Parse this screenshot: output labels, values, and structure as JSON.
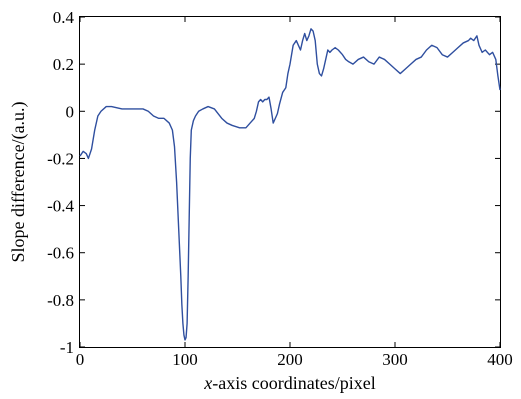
{
  "chart_data": {
    "type": "line",
    "title": "",
    "xlabel_italic": "x",
    "xlabel_rest": "-axis coordinates/pixel",
    "ylabel": "Slope difference/(a.u.)",
    "xlim": [
      0,
      400
    ],
    "ylim": [
      -1,
      0.4
    ],
    "xticks": [
      0,
      100,
      200,
      300,
      400
    ],
    "yticks": [
      -1,
      -0.8,
      -0.6,
      -0.4,
      -0.2,
      0,
      0.2,
      0.4
    ],
    "xtick_labels": [
      "0",
      "100",
      "200",
      "300",
      "400"
    ],
    "ytick_labels": [
      "-1",
      "-0.8",
      "-0.6",
      "-0.4",
      "-0.2",
      "0",
      "0.2",
      "0.4"
    ],
    "grid": false,
    "line_color": "#2f4f9f",
    "series": [
      {
        "x": [
          0,
          3,
          6,
          8,
          11,
          14,
          17,
          20,
          25,
          30,
          40,
          50,
          60,
          65,
          70,
          75,
          80,
          85,
          88,
          90,
          92,
          94,
          96,
          97,
          98,
          99,
          100,
          101,
          102,
          103,
          104,
          105,
          106,
          108,
          110,
          113,
          117,
          122,
          128,
          135,
          140,
          145,
          152,
          158,
          162,
          166,
          168,
          170,
          172,
          174,
          176,
          178,
          180,
          182,
          183,
          184,
          185,
          186,
          188,
          190,
          193,
          196,
          198,
          200,
          203,
          206,
          208,
          210,
          212,
          214,
          216,
          218,
          220,
          222,
          224,
          226,
          228,
          230,
          232,
          234,
          236,
          238,
          240,
          243,
          246,
          250,
          253,
          256,
          260,
          265,
          270,
          275,
          280,
          285,
          290,
          295,
          300,
          305,
          310,
          315,
          320,
          325,
          330,
          335,
          340,
          345,
          350,
          355,
          360,
          365,
          370,
          372,
          375,
          378,
          380,
          383,
          386,
          390,
          393,
          396,
          398,
          400
        ],
        "y": [
          -0.19,
          -0.17,
          -0.18,
          -0.2,
          -0.16,
          -0.08,
          -0.02,
          0,
          0.02,
          0.02,
          0.01,
          0.01,
          0.01,
          0,
          -0.02,
          -0.03,
          -0.03,
          -0.05,
          -0.08,
          -0.15,
          -0.3,
          -0.5,
          -0.7,
          -0.82,
          -0.9,
          -0.95,
          -0.97,
          -0.96,
          -0.9,
          -0.7,
          -0.45,
          -0.2,
          -0.08,
          -0.04,
          -0.02,
          0,
          0.01,
          0.02,
          0.01,
          -0.03,
          -0.05,
          -0.06,
          -0.07,
          -0.07,
          -0.05,
          -0.03,
          0,
          0.04,
          0.05,
          0.04,
          0.05,
          0.05,
          0.06,
          0.01,
          -0.02,
          -0.05,
          -0.04,
          -0.03,
          -0.01,
          0.03,
          0.08,
          0.1,
          0.16,
          0.2,
          0.28,
          0.3,
          0.28,
          0.26,
          0.3,
          0.33,
          0.3,
          0.32,
          0.35,
          0.34,
          0.3,
          0.2,
          0.16,
          0.15,
          0.18,
          0.22,
          0.26,
          0.25,
          0.26,
          0.27,
          0.26,
          0.24,
          0.22,
          0.21,
          0.2,
          0.22,
          0.23,
          0.21,
          0.2,
          0.23,
          0.22,
          0.2,
          0.18,
          0.16,
          0.18,
          0.2,
          0.22,
          0.23,
          0.26,
          0.28,
          0.27,
          0.24,
          0.23,
          0.25,
          0.27,
          0.29,
          0.3,
          0.31,
          0.3,
          0.32,
          0.28,
          0.25,
          0.26,
          0.24,
          0.25,
          0.22,
          0.15,
          0.09
        ]
      }
    ]
  }
}
